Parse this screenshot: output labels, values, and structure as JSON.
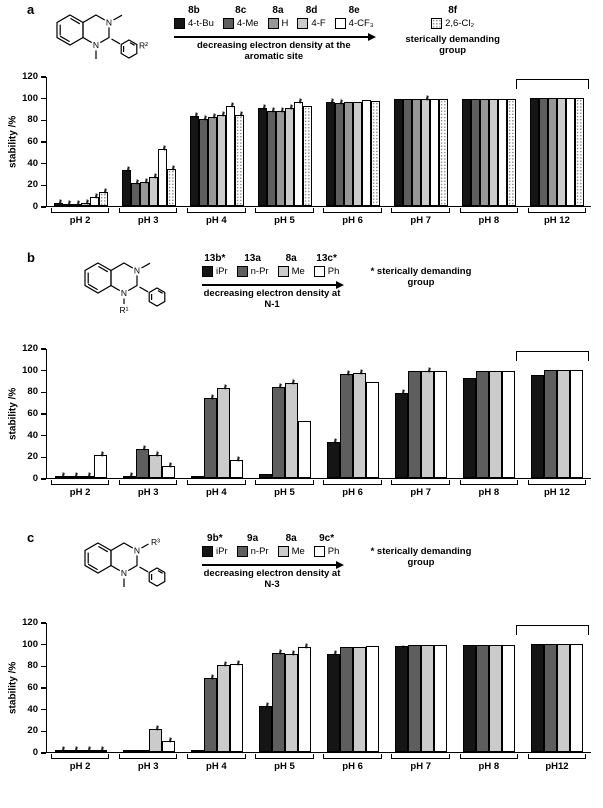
{
  "colors": {
    "black": "#151515",
    "dark": "#5e5e5e",
    "mid": "#979797",
    "light": "#cbcbcb",
    "white": "#ffffff"
  },
  "panels": [
    {
      "letter": "a",
      "structure": {
        "n_top": "N",
        "n_bottom": "N",
        "r_label": "R²"
      },
      "legend": {
        "items": [
          {
            "id": "8b",
            "name": "4-t-Bu",
            "swatch": "black"
          },
          {
            "id": "8c",
            "name": "4-Me",
            "swatch": "dark"
          },
          {
            "id": "8a",
            "name": "H",
            "swatch": "mid"
          },
          {
            "id": "8d",
            "name": "4-F",
            "swatch": "light"
          },
          {
            "id": "8e",
            "name": "4-CF₃",
            "swatch": "white"
          },
          {
            "id": "8f",
            "name": "2,6-Cl₂",
            "swatch": "dotted",
            "side": true
          }
        ],
        "arrow_text": "decreasing electron density at the aromatic site",
        "note": "sterically demanding group"
      }
    },
    {
      "letter": "b",
      "structure": {
        "n_top": "N",
        "n_bottom": "N",
        "r_label": "R¹"
      },
      "legend": {
        "items": [
          {
            "id": "13b*",
            "name": "iPr",
            "swatch": "black"
          },
          {
            "id": "13a",
            "name": "n-Pr",
            "swatch": "dark"
          },
          {
            "id": "8a",
            "name": "Me",
            "swatch": "light"
          },
          {
            "id": "13c*",
            "name": "Ph",
            "swatch": "white"
          }
        ],
        "arrow_text": "decreasing electron density at N-1",
        "note": "* sterically demanding group"
      }
    },
    {
      "letter": "c",
      "structure": {
        "n_top": "N",
        "n_bottom": "N",
        "r_label": "R³"
      },
      "legend": {
        "items": [
          {
            "id": "9b*",
            "name": "iPr",
            "swatch": "black"
          },
          {
            "id": "9a",
            "name": "n-Pr",
            "swatch": "dark"
          },
          {
            "id": "8a",
            "name": "Me",
            "swatch": "light"
          },
          {
            "id": "9c*",
            "name": "Ph",
            "swatch": "white"
          }
        ],
        "arrow_text": "decreasing electron density at N-3",
        "note": "* sterically demanding group"
      }
    }
  ],
  "chart_data": [
    {
      "type": "bar",
      "title": "",
      "xlabel": "",
      "ylabel": "stability /%",
      "ylim": [
        0,
        120
      ],
      "yticks": [
        0,
        20,
        40,
        60,
        80,
        100,
        120
      ],
      "categories": [
        "pH 2",
        "pH 3",
        "pH 4",
        "pH 5",
        "pH 6",
        "pH 7",
        "pH 8",
        "pH 12"
      ],
      "top_bracket": true,
      "legend_position": "top",
      "series": [
        {
          "name": "8b",
          "substituent": "4-t-Bu",
          "color": "black",
          "values": [
            3,
            33,
            83,
            90,
            96,
            99,
            99,
            100
          ],
          "sig": [
            "***",
            "***",
            "***",
            "***",
            "***",
            "",
            "",
            ""
          ]
        },
        {
          "name": "8c",
          "substituent": "4-Me",
          "color": "dark",
          "values": [
            2,
            21,
            80,
            88,
            95,
            99,
            99,
            100
          ],
          "sig": [
            "***",
            "***",
            "***",
            "***",
            "***",
            "",
            "",
            ""
          ]
        },
        {
          "name": "8a",
          "substituent": "H",
          "color": "mid",
          "values": [
            2,
            22,
            82,
            88,
            96,
            99,
            99,
            100
          ],
          "sig": [
            "***",
            "***",
            "***",
            "***",
            "",
            "",
            "",
            ""
          ]
        },
        {
          "name": "8d",
          "substituent": "4-F",
          "color": "light",
          "values": [
            3,
            27,
            84,
            90,
            96,
            99,
            99,
            100
          ],
          "sig": [
            "***",
            "***",
            "***",
            "***",
            "",
            "***",
            "",
            ""
          ]
        },
        {
          "name": "8e",
          "substituent": "4-CF₃",
          "color": "white",
          "values": [
            8,
            53,
            92,
            96,
            98,
            99,
            99,
            100
          ],
          "sig": [
            "***",
            "***",
            "***",
            "***",
            "",
            "",
            "",
            ""
          ]
        },
        {
          "name": "8f",
          "substituent": "2,6-Cl₂",
          "color": "dotted",
          "values": [
            13,
            34,
            84,
            92,
            97,
            99,
            99,
            100
          ],
          "sig": [
            "***",
            "***",
            "***",
            "",
            "",
            "",
            "",
            ""
          ]
        }
      ]
    },
    {
      "type": "bar",
      "title": "",
      "xlabel": "",
      "ylabel": "stability /%",
      "ylim": [
        0,
        120
      ],
      "yticks": [
        0,
        20,
        40,
        60,
        80,
        100,
        120
      ],
      "categories": [
        "pH 2",
        "pH 3",
        "pH 4",
        "pH 5",
        "pH 6",
        "pH 7",
        "pH 8",
        "pH 12"
      ],
      "top_bracket": true,
      "legend_position": "top",
      "series": [
        {
          "name": "13b",
          "substituent": "iPr",
          "color": "black",
          "values": [
            2,
            2,
            2,
            4,
            33,
            78,
            92,
            95
          ],
          "sig": [
            "***",
            "***",
            "",
            "",
            "***",
            "***",
            "",
            ""
          ]
        },
        {
          "name": "13a",
          "substituent": "n-Pr",
          "color": "dark",
          "values": [
            2,
            27,
            74,
            84,
            96,
            99,
            99,
            100
          ],
          "sig": [
            "***",
            "***",
            "***",
            "***",
            "***",
            "",
            "",
            ""
          ]
        },
        {
          "name": "8a",
          "substituent": "Me",
          "color": "light",
          "values": [
            2,
            21,
            83,
            88,
            97,
            99,
            99,
            100
          ],
          "sig": [
            "***",
            "***",
            "***",
            "***",
            "***",
            "***",
            "",
            ""
          ]
        },
        {
          "name": "13c",
          "substituent": "Ph",
          "color": "white",
          "values": [
            21,
            11,
            17,
            53,
            89,
            99,
            99,
            100
          ],
          "sig": [
            "***",
            "***",
            "***",
            "",
            "",
            "",
            "",
            ""
          ]
        }
      ]
    },
    {
      "type": "bar",
      "title": "",
      "xlabel": "",
      "ylabel": "stability /%",
      "ylim": [
        0,
        120
      ],
      "yticks": [
        0,
        20,
        40,
        60,
        80,
        100,
        120
      ],
      "categories": [
        "pH 2",
        "pH 3",
        "pH 4",
        "pH 5",
        "pH 6",
        "pH 7",
        "pH 8",
        "pH12"
      ],
      "top_bracket": true,
      "legend_position": "top",
      "series": [
        {
          "name": "9b",
          "substituent": "iPr",
          "color": "black",
          "values": [
            2,
            2,
            2,
            42,
            90,
            98,
            99,
            100
          ],
          "sig": [
            "***",
            "",
            "",
            "***",
            "***",
            "*",
            "",
            ""
          ]
        },
        {
          "name": "9a",
          "substituent": "n-Pr",
          "color": "dark",
          "values": [
            2,
            2,
            68,
            91,
            97,
            99,
            99,
            100
          ],
          "sig": [
            "***",
            "",
            "***",
            "***",
            "",
            "",
            "",
            ""
          ]
        },
        {
          "name": "8a",
          "substituent": "Me",
          "color": "light",
          "values": [
            2,
            21,
            80,
            90,
            97,
            99,
            99,
            100
          ],
          "sig": [
            "***",
            "***",
            "***",
            "***",
            "",
            "",
            "",
            ""
          ]
        },
        {
          "name": "9c",
          "substituent": "Ph",
          "color": "white",
          "values": [
            2,
            10,
            81,
            97,
            98,
            99,
            99,
            100
          ],
          "sig": [
            "***",
            "***",
            "***",
            "***",
            "",
            "",
            "",
            ""
          ]
        }
      ]
    }
  ]
}
